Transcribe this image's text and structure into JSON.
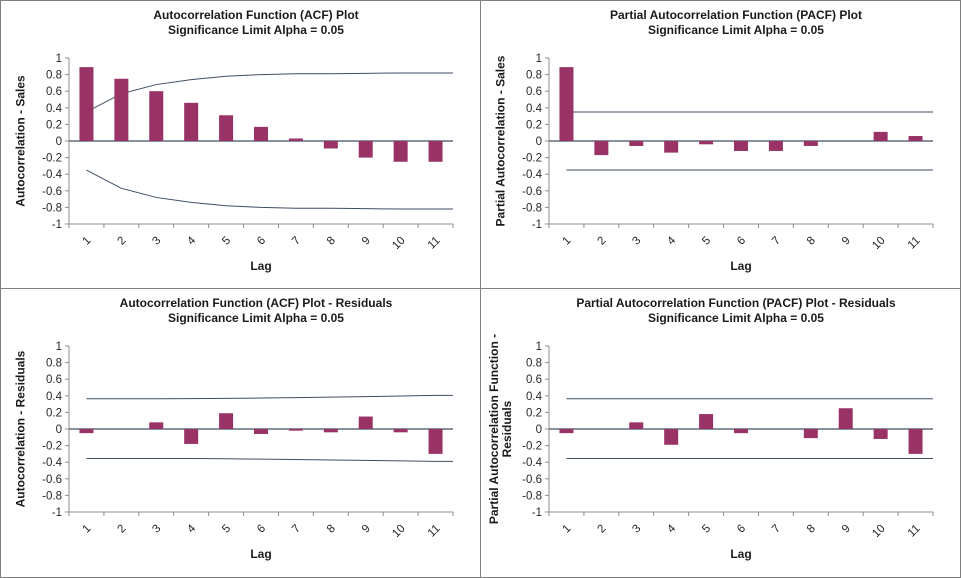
{
  "window": {
    "background": "#ffffff",
    "frame_border": "#7f7f7f",
    "panel_divider": "#808080"
  },
  "colors": {
    "bar": "#993366",
    "limit_line": "#3F4E64",
    "zero_line": "#3F4E64",
    "axis": "#8C8C8C",
    "text": "#262626",
    "title": "#1a1a1a"
  },
  "chart_data": [
    {
      "type": "bar",
      "title": "Autocorrelation Function (ACF) Plot",
      "subtitle": "Significance Limit Alpha = 0.05",
      "ylabel": "Autocorrelation - Sales",
      "xlabel": "Lag",
      "categories": [
        1,
        2,
        3,
        4,
        5,
        6,
        7,
        8,
        9,
        10,
        11
      ],
      "values": [
        0.89,
        0.75,
        0.6,
        0.46,
        0.31,
        0.17,
        0.03,
        -0.09,
        -0.2,
        -0.25,
        -0.25
      ],
      "upper_limit": [
        0.35,
        0.57,
        0.68,
        0.74,
        0.78,
        0.8,
        0.81,
        0.81,
        0.815,
        0.82,
        0.82
      ],
      "lower_limit": [
        -0.35,
        -0.57,
        -0.68,
        -0.74,
        -0.78,
        -0.8,
        -0.81,
        -0.81,
        -0.815,
        -0.82,
        -0.82
      ],
      "ylim": [
        -1,
        1
      ],
      "ytick_step": 0.2,
      "grid": false,
      "legend": null
    },
    {
      "type": "bar",
      "title": "Partial Autocorrelation Function (PACF) Plot",
      "subtitle": "Significance Limit Alpha = 0.05",
      "ylabel": "Partial Autocorrelation - Sales",
      "xlabel": "Lag",
      "categories": [
        1,
        2,
        3,
        4,
        5,
        6,
        7,
        8,
        9,
        10,
        11
      ],
      "values": [
        0.89,
        -0.17,
        -0.06,
        -0.14,
        -0.04,
        -0.12,
        -0.12,
        -0.06,
        0.0,
        0.11,
        0.06
      ],
      "upper_limit": [
        0.35,
        0.35,
        0.35,
        0.35,
        0.35,
        0.35,
        0.35,
        0.35,
        0.35,
        0.35,
        0.35
      ],
      "lower_limit": [
        -0.35,
        -0.35,
        -0.35,
        -0.35,
        -0.35,
        -0.35,
        -0.35,
        -0.35,
        -0.35,
        -0.35,
        -0.35
      ],
      "ylim": [
        -1,
        1
      ],
      "ytick_step": 0.2,
      "grid": false,
      "legend": null
    },
    {
      "type": "bar",
      "title": "Autocorrelation Function (ACF) Plot - Residuals",
      "subtitle": "Significance Limit Alpha = 0.05",
      "ylabel": "Autocorrelation - Residuals",
      "xlabel": "Lag",
      "categories": [
        1,
        2,
        3,
        4,
        5,
        6,
        7,
        8,
        9,
        10,
        11
      ],
      "values": [
        -0.05,
        0.0,
        0.08,
        -0.18,
        0.19,
        -0.06,
        -0.02,
        -0.04,
        0.15,
        -0.04,
        -0.3
      ],
      "upper_limit": [
        0.365,
        0.365,
        0.365,
        0.366,
        0.369,
        0.373,
        0.378,
        0.384,
        0.39,
        0.398,
        0.405
      ],
      "lower_limit": [
        -0.355,
        -0.355,
        -0.355,
        -0.356,
        -0.359,
        -0.363,
        -0.368,
        -0.373,
        -0.378,
        -0.384,
        -0.39
      ],
      "ylim": [
        -1,
        1
      ],
      "ytick_step": 0.2,
      "grid": false,
      "legend": null
    },
    {
      "type": "bar",
      "title": "Partial Autocorrelation Function (PACF) Plot - Residuals",
      "subtitle": "Significance Limit Alpha = 0.05",
      "ylabel": "Partial Autocorrelation Function -\nResiduals",
      "xlabel": "Lag",
      "categories": [
        1,
        2,
        3,
        4,
        5,
        6,
        7,
        8,
        9,
        10,
        11
      ],
      "values": [
        -0.05,
        0.0,
        0.08,
        -0.19,
        0.18,
        -0.05,
        0.0,
        -0.11,
        0.25,
        -0.12,
        -0.3
      ],
      "upper_limit": [
        0.365,
        0.365,
        0.365,
        0.365,
        0.365,
        0.365,
        0.365,
        0.365,
        0.365,
        0.365,
        0.365
      ],
      "lower_limit": [
        -0.355,
        -0.355,
        -0.355,
        -0.355,
        -0.355,
        -0.355,
        -0.355,
        -0.355,
        -0.355,
        -0.355,
        -0.355
      ],
      "ylim": [
        -1,
        1
      ],
      "ytick_step": 0.2,
      "grid": false,
      "legend": null
    }
  ]
}
